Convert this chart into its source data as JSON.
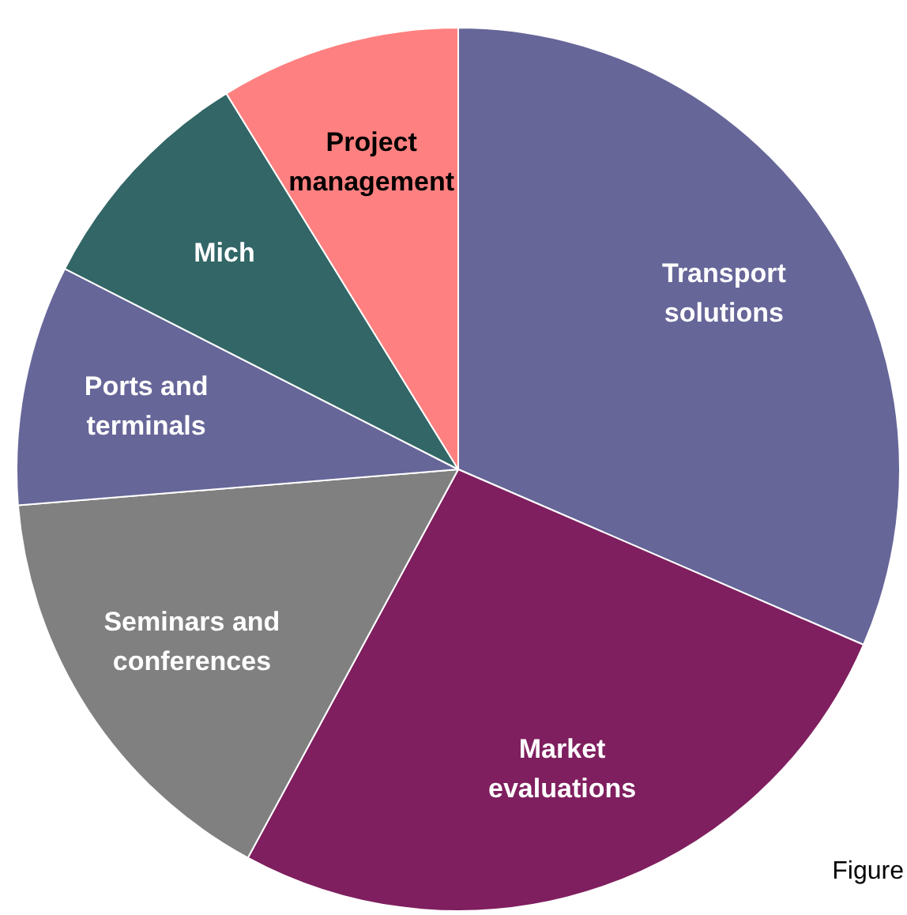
{
  "chart_data": {
    "type": "pie",
    "categories": [
      "Transport solutions",
      "Market evaluations",
      "Seminars and conferences",
      "Ports and terminals",
      "Mich",
      "Project management"
    ],
    "values": [
      31.5,
      26.4,
      15.8,
      8.8,
      8.7,
      8.8
    ],
    "colors": [
      "#666699",
      "#7f1f5f",
      "#808080",
      "#666699",
      "#336666",
      "#ff8080"
    ],
    "legend": false,
    "annotations": [
      "Figure"
    ]
  }
}
